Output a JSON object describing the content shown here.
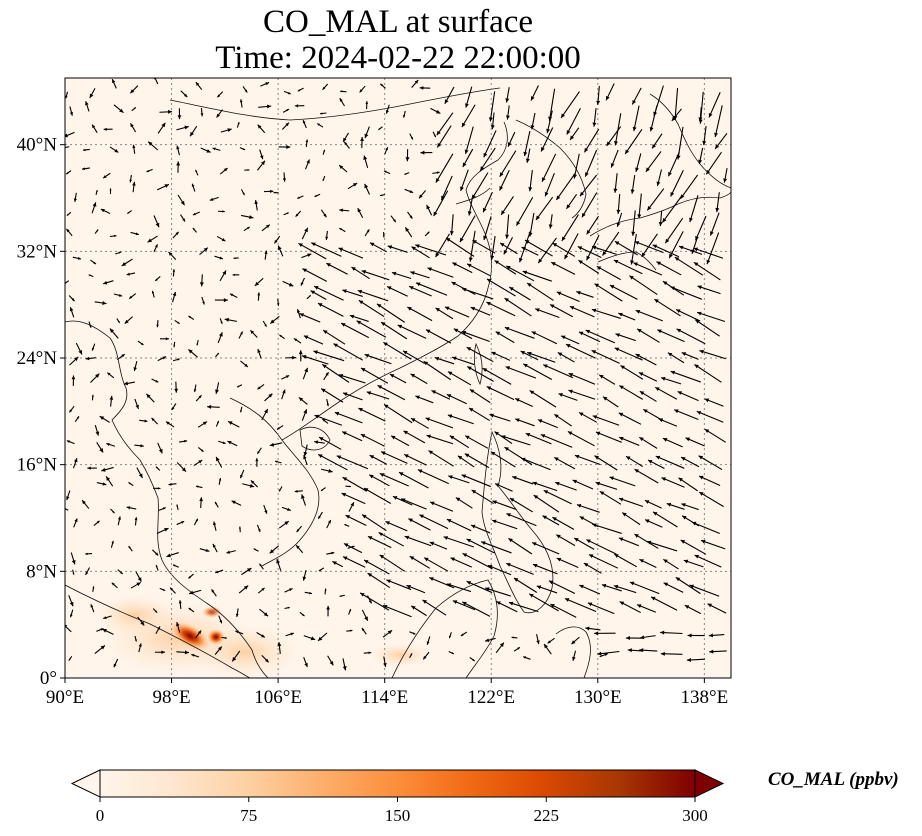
{
  "title": {
    "line1": "CO_MAL at surface",
    "line2": "Time: 2024-02-22 22:00:00"
  },
  "map": {
    "lon_range": [
      90,
      140
    ],
    "lat_range": [
      0,
      45
    ],
    "lon_ticks": [
      {
        "value": 90,
        "label": "90°E"
      },
      {
        "value": 98,
        "label": "98°E"
      },
      {
        "value": 106,
        "label": "106°E"
      },
      {
        "value": 114,
        "label": "114°E"
      },
      {
        "value": 122,
        "label": "122°E"
      },
      {
        "value": 130,
        "label": "130°E"
      },
      {
        "value": 138,
        "label": "138°E"
      }
    ],
    "lat_ticks": [
      {
        "value": 0,
        "label": "0°"
      },
      {
        "value": 8,
        "label": "8°N"
      },
      {
        "value": 16,
        "label": "16°N"
      },
      {
        "value": 24,
        "label": "24°N"
      },
      {
        "value": 32,
        "label": "32°N"
      },
      {
        "value": 40,
        "label": "40°N"
      }
    ],
    "gridlines": true,
    "field_colors": {
      "background": "#fff5eb",
      "mid": "#fdae6b",
      "high": "#d94801",
      "max": "#7f0000"
    }
  },
  "colorbar": {
    "label": "CO_MAL (ppbv)",
    "range": [
      0,
      300
    ],
    "extend": "both",
    "ticks": [
      {
        "value": 0,
        "label": "0"
      },
      {
        "value": 75,
        "label": "75"
      },
      {
        "value": 150,
        "label": "150"
      },
      {
        "value": 225,
        "label": "225"
      },
      {
        "value": 300,
        "label": "300"
      }
    ],
    "stops": [
      "#fff5eb",
      "#fee6ce",
      "#fdd0a2",
      "#fdae6b",
      "#fd8d3c",
      "#f16913",
      "#d94801",
      "#a63603",
      "#7f0000"
    ]
  }
}
